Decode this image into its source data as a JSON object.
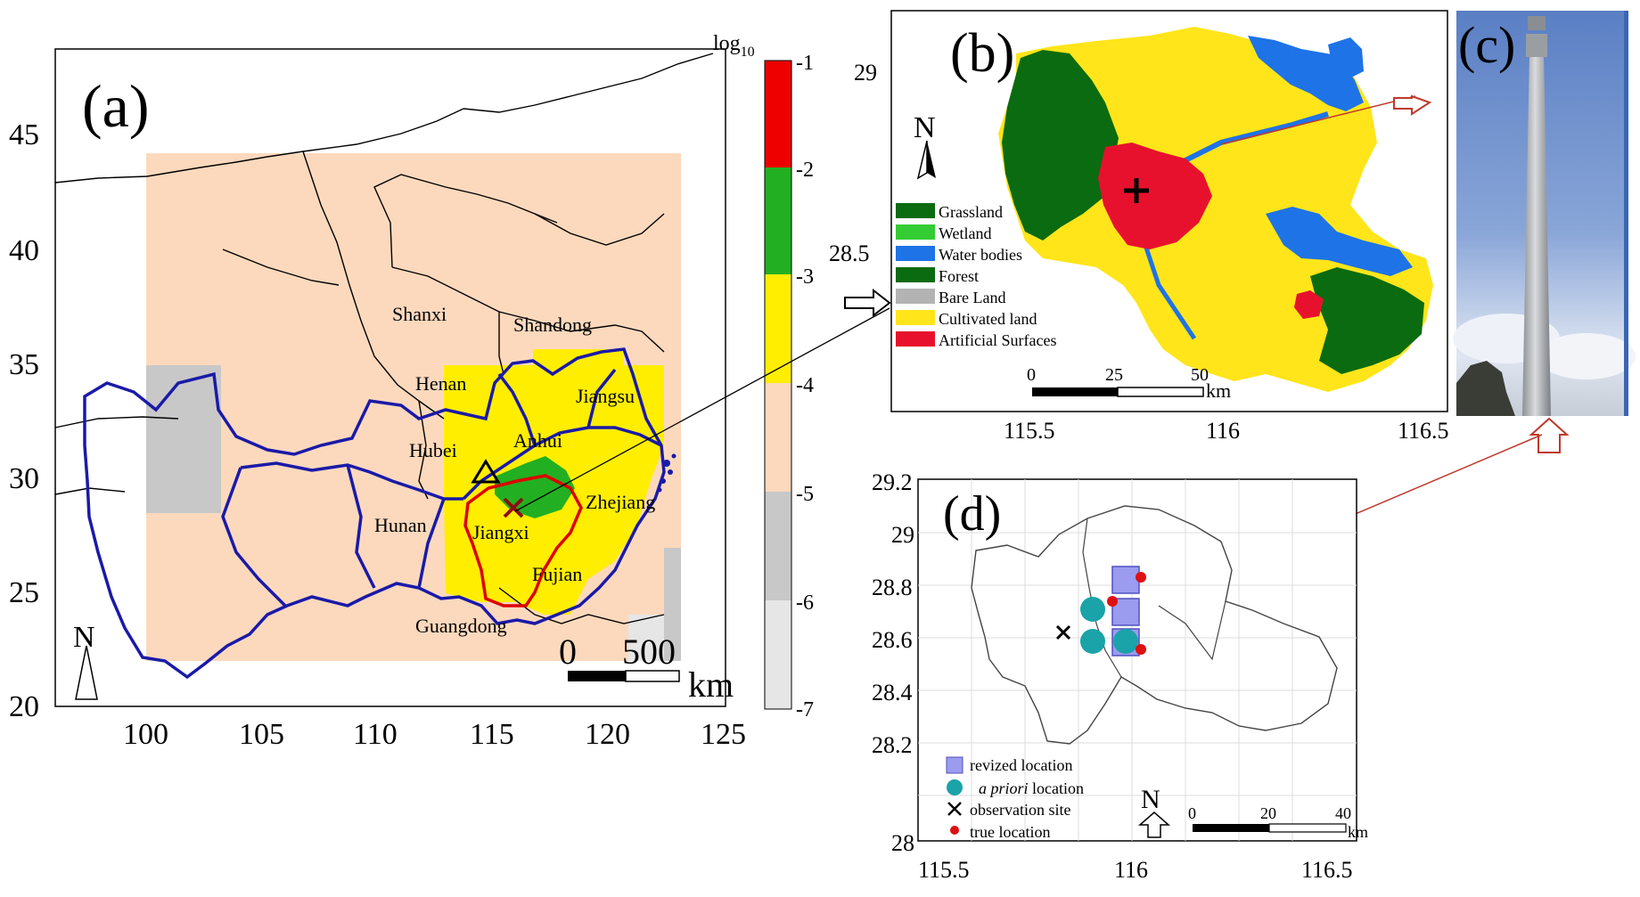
{
  "panel_a": {
    "label": "(a)",
    "x_ticks": [
      "100",
      "105",
      "110",
      "115",
      "120",
      "125"
    ],
    "y_ticks": [
      "45",
      "40",
      "35",
      "30",
      "25",
      "20"
    ],
    "provinces": [
      "Shanxi",
      "Shandong",
      "Henan",
      "Jiangsu",
      "Hubei",
      "Anhui",
      "Hunan",
      "Jiangxi",
      "Zhejiang",
      "Fujian",
      "Guangdong"
    ],
    "north": "N",
    "scalebar_labels": [
      "0",
      "500"
    ],
    "scalebar_unit": "km",
    "colorbar_title": "log",
    "colorbar_title_sub": "10",
    "colorbar_ticks": [
      "-1",
      "-2",
      "-3",
      "-4",
      "-5",
      "-6",
      "-7"
    ],
    "colorbar_colors": [
      "#ee0000",
      "#22b022",
      "#ffee00",
      "#fcd9bd",
      "#c8c8c8",
      "#e6e6e6"
    ],
    "marker_colors": {
      "province_border": "#1a1aa8",
      "jiangxi_border": "#dd0000",
      "heat": "#22b022"
    }
  },
  "panel_b": {
    "label": "(b)",
    "x_ticks": [
      "115.5",
      "116",
      "116.5"
    ],
    "y_ticks": [
      "29",
      "28.5"
    ],
    "north": "N",
    "legend": [
      {
        "label": "Grassland",
        "color": "#0b6b10"
      },
      {
        "label": "Wetland",
        "color": "#33cc33"
      },
      {
        "label": "Water bodies",
        "color": "#1e73e6"
      },
      {
        "label": "Forest",
        "color": "#0b6b10"
      },
      {
        "label": "Bare Land",
        "color": "#b3b3b3"
      },
      {
        "label": "Cultivated land",
        "color": "#ffe51a"
      },
      {
        "label": "Artificial Surfaces",
        "color": "#e8112d"
      }
    ],
    "scalebar_labels": [
      "0",
      "25",
      "50"
    ],
    "scalebar_unit": "km"
  },
  "panel_c": {
    "label": "(c)"
  },
  "panel_d": {
    "label": "(d)",
    "x_ticks": [
      "115.5",
      "116",
      "116.5"
    ],
    "y_ticks": [
      "29.2",
      "29",
      "28.8",
      "28.6",
      "28.4",
      "28.2",
      "28"
    ],
    "legend": [
      {
        "label": "revized location",
        "marker": "square",
        "color": "#9b9bf0"
      },
      {
        "label_italic": "a priori",
        "label_rest": " location",
        "marker": "circle",
        "color": "#1aa3a8"
      },
      {
        "label": "observation site",
        "marker": "cross",
        "color": "#000000"
      },
      {
        "label": "true location",
        "marker": "dot",
        "color": "#e01010"
      }
    ],
    "north": "N",
    "scalebar_labels": [
      "0",
      "20",
      "40"
    ],
    "scalebar_unit": "km"
  }
}
